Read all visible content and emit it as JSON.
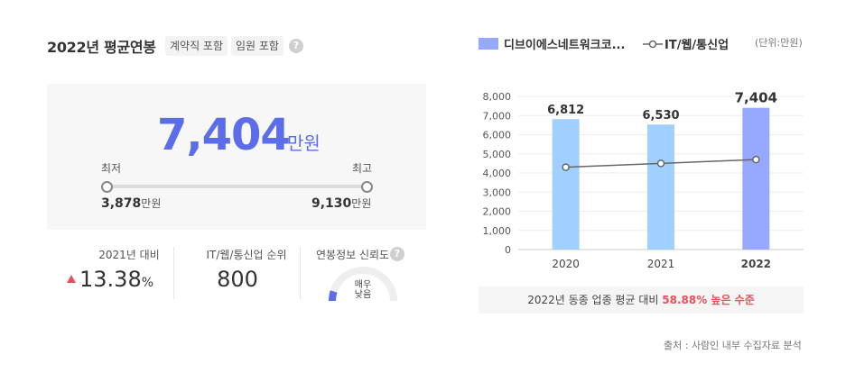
{
  "header": {
    "title": "2022년 평균연봉",
    "chip_contract": "계약직 포함",
    "chip_executive": "임원 포함",
    "help_glyph": "?"
  },
  "salary": {
    "value": "7,404",
    "unit": "만원",
    "min_label": "최저",
    "max_label": "최고",
    "min_value": "3,878",
    "max_value": "9,130",
    "value_unit": "만원"
  },
  "stats": {
    "yoy_label": "2021년 대비",
    "yoy_value": "13.38",
    "yoy_pct": "%",
    "yoy_direction": "up",
    "rank_label": "IT/웹/통신업 순위",
    "rank_value": "800",
    "reliability_label": "연봉정보 신뢰도",
    "reliability_text_line1": "매우",
    "reliability_text_line2": "낮음",
    "reliability_level": 0.1
  },
  "legend": {
    "series1": "디브이에스네트워크코...",
    "series2": "IT/웹/통신업",
    "unit": "(단위:만원)"
  },
  "colors": {
    "accent": "#5b6de8",
    "bar_past": "#9fd0ff",
    "bar_current": "#97a8ff",
    "line": "#666666",
    "up": "#e8505b"
  },
  "chart_data": {
    "type": "bar",
    "categories": [
      "2020",
      "2021",
      "2022"
    ],
    "series": [
      {
        "name": "디브이에스네트워크코...",
        "values": [
          6812,
          6530,
          7404
        ],
        "labels": [
          "6,812",
          "6,530",
          "7,404"
        ]
      },
      {
        "name": "IT/웹/통신업",
        "type": "line",
        "values": [
          4300,
          4500,
          4700
        ]
      }
    ],
    "y_ticks": [
      "0",
      "1,000",
      "2,000",
      "3,000",
      "4,000",
      "5,000",
      "6,000",
      "7,000",
      "8,000"
    ],
    "ylim": [
      0,
      8000
    ],
    "grid": true
  },
  "notice": {
    "prefix": "2022년 동종 업종 평균 대비",
    "highlight": "58.88% 높은 수준"
  },
  "source": "출처 : 사람인 내부 수집자료 분석"
}
